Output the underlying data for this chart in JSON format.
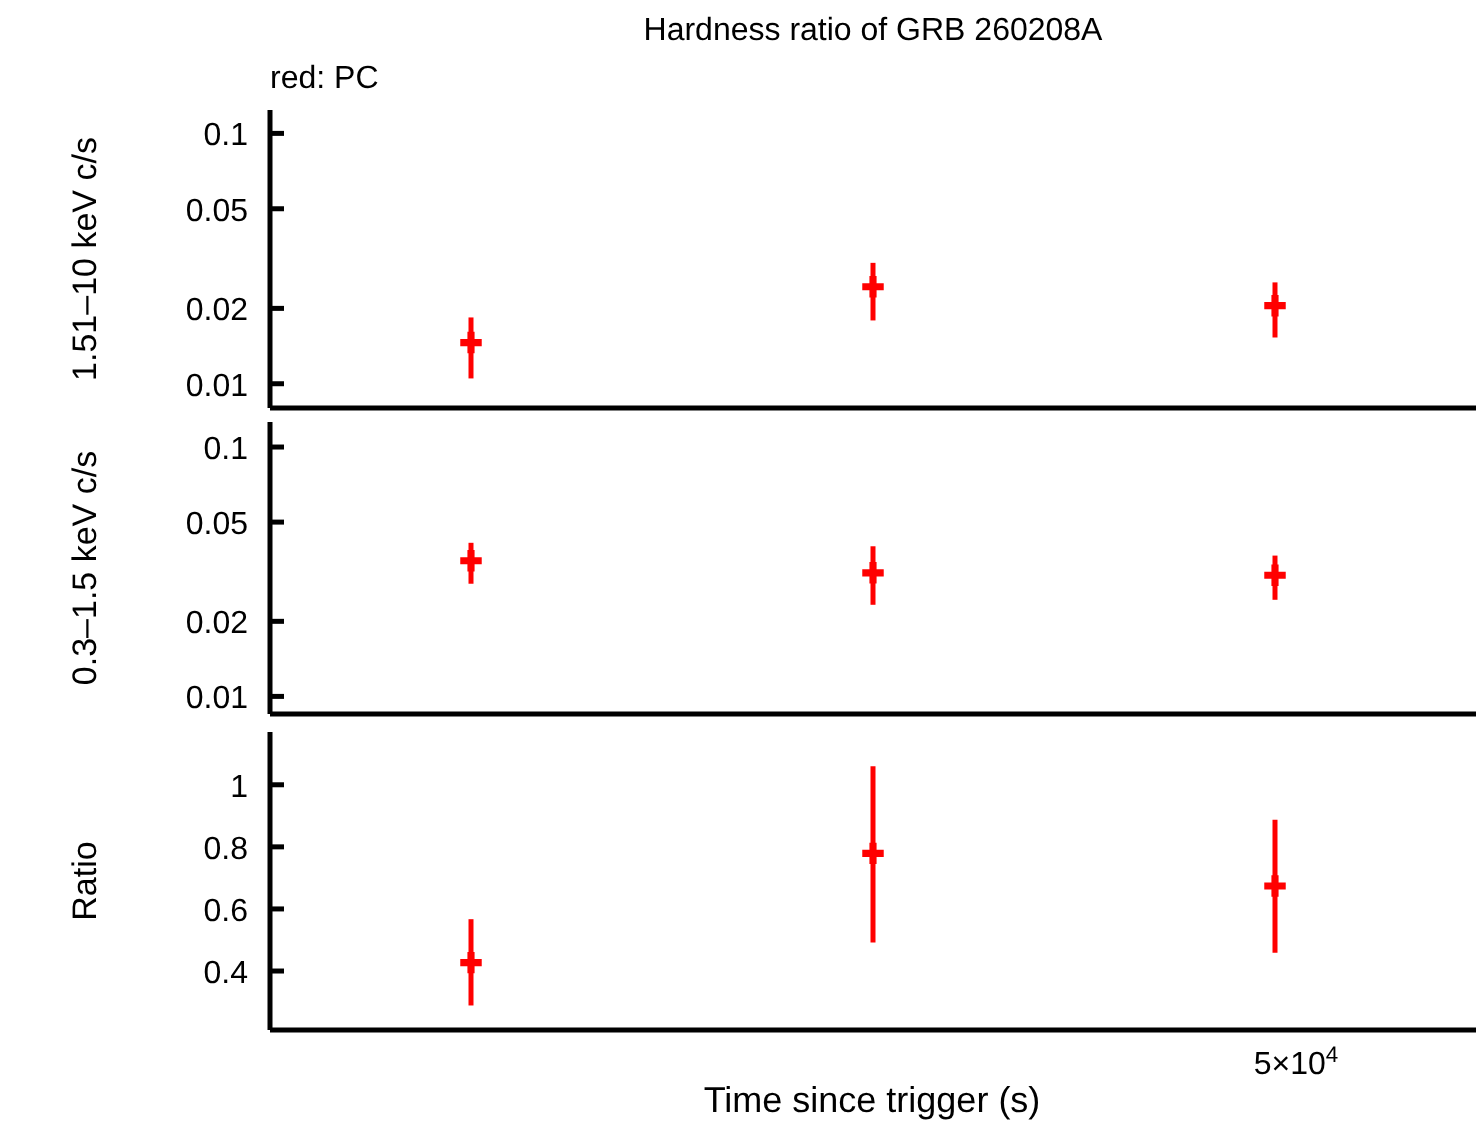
{
  "chart_data": [
    {
      "type": "scatter",
      "title": "Hardness ratio of GRB 260208A",
      "annotations": [
        "red: PC"
      ],
      "ylabel": "1.51–10 keV c/s",
      "categories": [
        null,
        null,
        null
      ],
      "ylim": [
        0.008,
        0.124
      ],
      "yticks": [
        0.01,
        0.02,
        0.05,
        0.1
      ],
      "log": "y",
      "tick_labels": "y",
      "marker": "cross",
      "series": [
        {
          "color": "#ff0000",
          "values": [
            0.0146,
            0.0244,
            0.0205
          ],
          "errors": [
            [
              0.0105,
              0.0184
            ],
            [
              0.0179,
              0.0304
            ],
            [
              0.0153,
              0.0254
            ]
          ]
        }
      ]
    },
    {
      "type": "scatter",
      "ylabel": "0.3–1.5 keV c/s",
      "categories": [
        null,
        null,
        null
      ],
      "ylim": [
        0.0085,
        0.126
      ],
      "yticks": [
        0.01,
        0.02,
        0.05,
        0.1
      ],
      "log": "y",
      "tick_labels": "y",
      "marker": "cross",
      "series": [
        {
          "color": "#ff0000",
          "values": [
            0.035,
            0.0313,
            0.0306
          ],
          "errors": [
            [
              0.0283,
              0.0413
            ],
            [
              0.0233,
              0.04
            ],
            [
              0.0244,
              0.0367
            ]
          ]
        }
      ]
    },
    {
      "type": "scatter",
      "xlabel": "Time since trigger (s)",
      "ylabel": "Ratio",
      "annotations": [
        "5×10$^{4}$"
      ],
      "categories": [
        null,
        null,
        null
      ],
      "ylim": [
        0.21,
        1.17
      ],
      "yticks": [
        0.4,
        0.6,
        0.8,
        1
      ],
      "tick_labels": "y",
      "marker": "cross",
      "series": [
        {
          "color": "#ff0000",
          "values": [
            0.427,
            0.779,
            0.674
          ],
          "errors": [
            [
              0.289,
              0.567
            ],
            [
              0.492,
              1.06
            ],
            [
              0.459,
              0.887
            ]
          ]
        }
      ]
    }
  ]
}
